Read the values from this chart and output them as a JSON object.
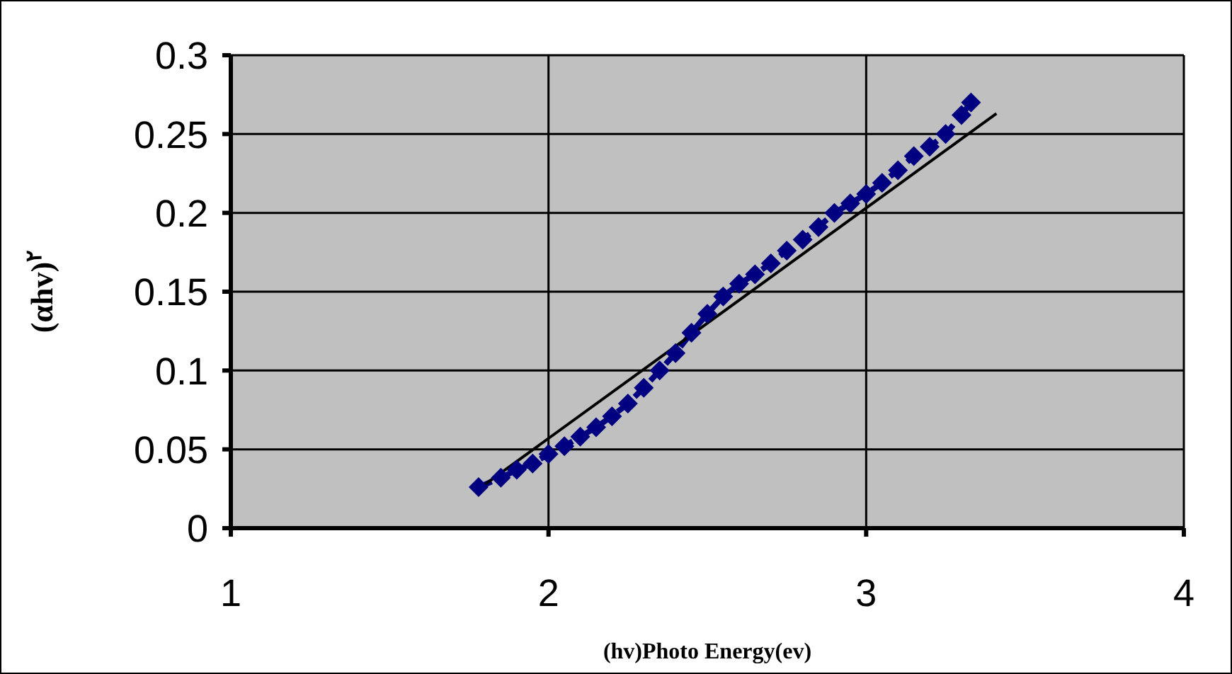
{
  "chart_data": {
    "type": "line",
    "xlabel": "(hv)Photo Energy(ev)",
    "ylabel": "(αhv)$^{٢}$",
    "xlim": [
      1,
      4
    ],
    "xticks": [
      1,
      2,
      3,
      4
    ],
    "ylim": [
      0,
      0.3
    ],
    "yticks": [
      0,
      0.05,
      0.1,
      0.15,
      0.2,
      0.25,
      0.3
    ],
    "grid": true,
    "series": [
      {
        "color": "#000080",
        "marker": "diamond",
        "line_style": "dashed",
        "x": [
          1.78,
          1.85,
          1.9,
          1.95,
          2.0,
          2.05,
          2.1,
          2.15,
          2.2,
          2.25,
          2.3,
          2.35,
          2.4,
          2.45,
          2.5,
          2.55,
          2.6,
          2.65,
          2.7,
          2.75,
          2.8,
          2.85,
          2.9,
          2.95,
          3.0,
          3.05,
          3.1,
          3.15,
          3.2,
          3.25,
          3.3,
          3.33
        ],
        "values": [
          0.026,
          0.032,
          0.037,
          0.041,
          0.047,
          0.052,
          0.058,
          0.064,
          0.071,
          0.079,
          0.089,
          0.1,
          0.111,
          0.124,
          0.136,
          0.147,
          0.155,
          0.161,
          0.168,
          0.176,
          0.183,
          0.191,
          0.2,
          0.206,
          0.212,
          0.219,
          0.227,
          0.236,
          0.242,
          0.25,
          0.262,
          0.27
        ]
      },
      {
        "type": "line",
        "color": "#000000",
        "marker": "none",
        "line_style": "solid",
        "x": [
          1.795,
          3.41
        ],
        "values": [
          0.027,
          0.263
        ]
      }
    ]
  }
}
